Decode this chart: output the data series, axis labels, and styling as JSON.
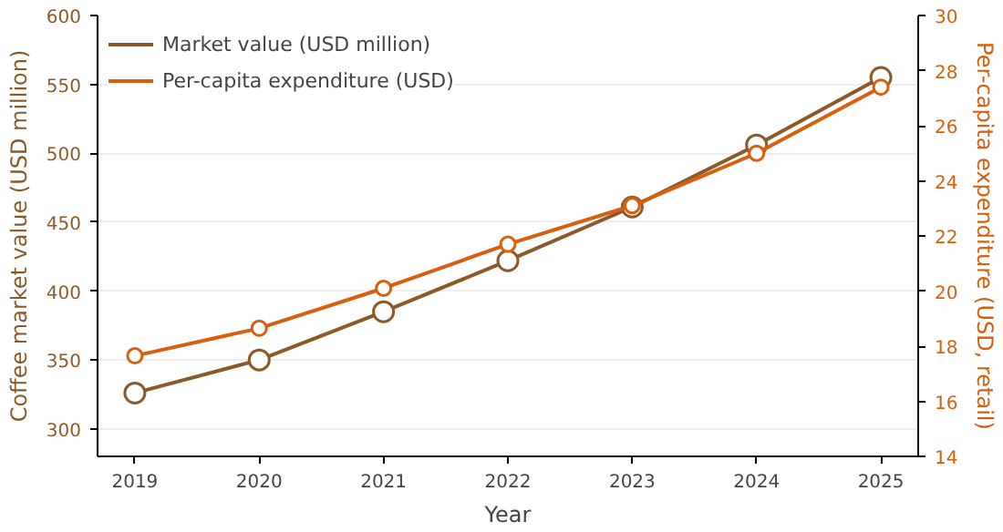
{
  "chart_data": {
    "type": "line",
    "xlabel": "Year",
    "ylabel": "Coffee market value (USD million)",
    "y2label": "Per-capita expenditure (USD, retail)",
    "x": [
      2019,
      2020,
      2021,
      2022,
      2023,
      2024,
      2025
    ],
    "xlim": [
      2018.7,
      2025.3
    ],
    "xticks": [
      2019,
      2020,
      2021,
      2022,
      2023,
      2024,
      2025
    ],
    "ylim": [
      280,
      600
    ],
    "yticks": [
      300,
      350,
      400,
      450,
      500,
      550,
      600
    ],
    "y2lim": [
      14,
      30
    ],
    "y2ticks": [
      14,
      16,
      18,
      20,
      22,
      24,
      26,
      28,
      30
    ],
    "series": [
      {
        "name": "Market value (USD million)",
        "color": "#8b5a2b",
        "values": [
          326,
          350,
          385,
          422,
          461,
          506,
          555
        ]
      },
      {
        "name": "Per-capita expenditure (USD)",
        "color": "#d95f0e",
        "axis": "y2",
        "values": [
          17.65,
          18.65,
          20.1,
          21.7,
          23.1,
          25.0,
          27.4
        ]
      }
    ],
    "grid": "y",
    "legend": "top left",
    "marker": "circle",
    "line_style": "solid"
  }
}
